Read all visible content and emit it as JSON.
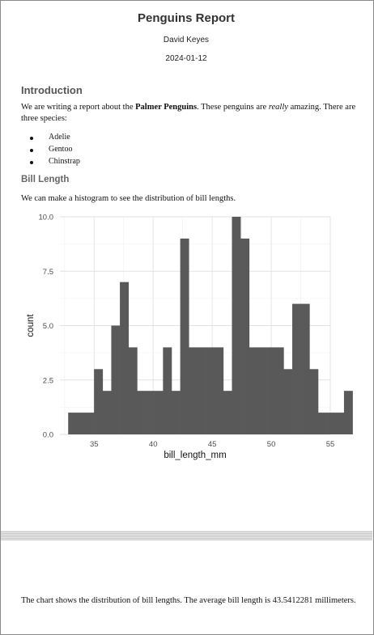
{
  "document": {
    "title": "Penguins Report",
    "author": "David Keyes",
    "date": "2024-01-12",
    "intro_heading": "Introduction",
    "intro_text_1": "We are writing a report about the ",
    "intro_bold": "Palmer Penguins",
    "intro_text_2": ". These penguins are ",
    "intro_italic": "really",
    "intro_text_3": " amazing. There are three species:",
    "species": [
      "Adelie",
      "Gentoo",
      "Chinstrap"
    ],
    "bill_heading": "Bill Length",
    "bill_text": "We can make a histogram to see the distribution of bill lengths.",
    "summary_text": "The chart shows the distribution of bill lengths. The average bill length is 43.5412281 millimeters."
  },
  "chart_data": {
    "type": "bar",
    "xlabel": "bill_length_mm",
    "ylabel": "count",
    "xlim": [
      32.1,
      55.0
    ],
    "ylim": [
      0,
      10
    ],
    "x_ticks": [
      35,
      40,
      45,
      50,
      55
    ],
    "y_ticks": [
      "0.0",
      "2.5",
      "5.0",
      "7.5",
      "10.0"
    ],
    "bin_start": 32.8,
    "bin_width": 0.73,
    "values": [
      1,
      1,
      1,
      3,
      2,
      5,
      7,
      4,
      2,
      2,
      2,
      4,
      2,
      9,
      4,
      4,
      4,
      4,
      2,
      10,
      9,
      4,
      4,
      4,
      4,
      3,
      6,
      6,
      3,
      1,
      1,
      1,
      2
    ],
    "bar_color": "#595959",
    "grid": true
  }
}
